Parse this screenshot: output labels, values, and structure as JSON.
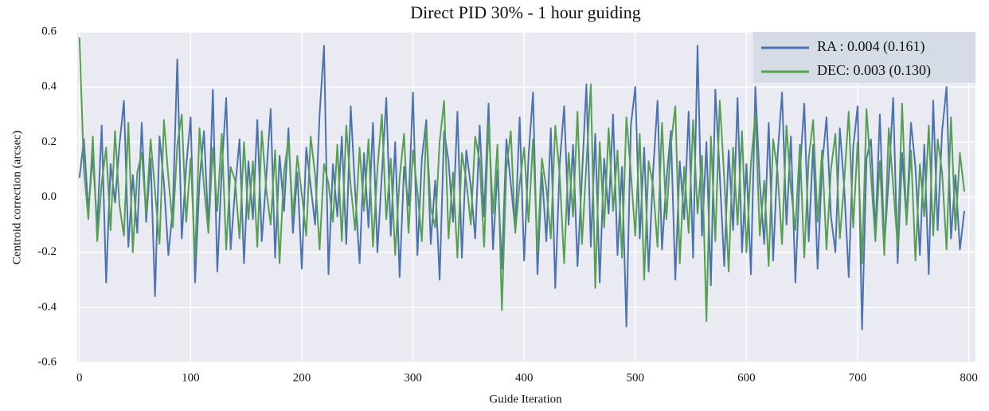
{
  "chart_data": {
    "type": "line",
    "title": "Direct PID 30% - 1 hour guiding",
    "xlabel": "Guide Iteration",
    "ylabel": "Centroid correction  (arcsec)",
    "xlim": [
      -2,
      806
    ],
    "ylim": [
      -0.6,
      0.6
    ],
    "xticks": [
      0,
      100,
      200,
      300,
      400,
      500,
      600,
      700,
      800
    ],
    "yticks": [
      -0.6,
      -0.4,
      -0.2,
      {
        "value": 0,
        "label": "0.0"
      },
      0.2,
      0.4,
      0.6
    ],
    "grid": true,
    "legend": "upper right",
    "x": [
      0,
      4,
      8,
      12,
      16,
      20,
      24,
      28,
      32,
      36,
      40,
      44,
      48,
      52,
      56,
      60,
      64,
      68,
      72,
      76,
      80,
      84,
      88,
      92,
      96,
      100,
      104,
      108,
      112,
      116,
      120,
      124,
      128,
      132,
      136,
      140,
      144,
      148,
      152,
      156,
      160,
      164,
      168,
      172,
      176,
      180,
      184,
      188,
      192,
      196,
      200,
      204,
      208,
      212,
      216,
      220,
      224,
      228,
      232,
      236,
      240,
      244,
      248,
      252,
      256,
      260,
      264,
      268,
      272,
      276,
      280,
      284,
      288,
      292,
      296,
      300,
      304,
      308,
      312,
      316,
      320,
      324,
      328,
      332,
      336,
      340,
      344,
      348,
      352,
      356,
      360,
      364,
      368,
      372,
      376,
      380,
      384,
      388,
      392,
      396,
      400,
      404,
      408,
      412,
      416,
      420,
      424,
      428,
      432,
      436,
      440,
      444,
      448,
      452,
      456,
      460,
      464,
      468,
      472,
      476,
      480,
      484,
      488,
      492,
      496,
      500,
      504,
      508,
      512,
      516,
      520,
      524,
      528,
      532,
      536,
      540,
      544,
      548,
      552,
      556,
      560,
      564,
      568,
      572,
      576,
      580,
      584,
      588,
      592,
      596,
      600,
      604,
      608,
      612,
      616,
      620,
      624,
      628,
      632,
      636,
      640,
      644,
      648,
      652,
      656,
      660,
      664,
      668,
      672,
      676,
      680,
      684,
      688,
      692,
      696,
      700,
      704,
      708,
      712,
      716,
      720,
      724,
      728,
      732,
      736,
      740,
      744,
      748,
      752,
      756,
      760,
      764,
      768,
      772,
      776,
      780,
      784,
      788,
      792,
      796
    ],
    "series": [
      {
        "name": "RA :  0.004 (0.161)",
        "color": "#4c72b0",
        "values": [
          0.07,
          0.21,
          -0.05,
          0.15,
          -0.11,
          0.26,
          -0.31,
          0.12,
          -0.02,
          0.19,
          0.35,
          -0.18,
          0.08,
          -0.13,
          0.27,
          -0.09,
          0.14,
          -0.36,
          0.22,
          0.05,
          -0.21,
          -0.04,
          0.5,
          -0.15,
          0.11,
          0.29,
          -0.31,
          0.06,
          0.24,
          -0.12,
          0.39,
          -0.27,
          0.1,
          0.36,
          -0.19,
          0.03,
          0.21,
          -0.24,
          0.13,
          -0.08,
          0.28,
          -0.16,
          0.07,
          0.32,
          -0.22,
          0.15,
          -0.05,
          0.25,
          -0.13,
          0.09,
          -0.26,
          0.18,
          0.04,
          -0.1,
          0.3,
          0.55,
          -0.28,
          0.12,
          -0.07,
          0.22,
          -0.17,
          0.33,
          0.02,
          -0.24,
          0.16,
          -0.11,
          0.27,
          -0.2,
          0.08,
          0.36,
          -0.14,
          0.2,
          -0.29,
          0.11,
          -0.03,
          0.38,
          -0.21,
          0.14,
          0.28,
          -0.17,
          0.06,
          -0.3,
          0.24,
          0.13,
          -0.09,
          0.31,
          -0.22,
          0.17,
          0.04,
          -0.15,
          0.26,
          -0.07,
          0.34,
          -0.19,
          0.1,
          -0.26,
          0.21,
          0.05,
          -0.12,
          0.29,
          -0.23,
          0.15,
          0.38,
          -0.28,
          0.09,
          -0.16,
          0.25,
          -0.33,
          0.12,
          0.33,
          -0.1,
          0.19,
          -0.25,
          0.07,
          0.41,
          -0.18,
          0.23,
          -0.31,
          0.14,
          -0.06,
          0.3,
          -0.21,
          0.11,
          -0.47,
          0.26,
          0.4,
          -0.15,
          0.18,
          -0.27,
          0.09,
          0.35,
          -0.19,
          0.06,
          0.24,
          -0.3,
          0.13,
          -0.08,
          0.31,
          -0.22,
          0.55,
          -0.14,
          0.2,
          -0.32,
          0.39,
          0.08,
          -0.25,
          0.17,
          -0.12,
          0.36,
          -0.2,
          0.12,
          -0.28,
          0.4,
          0.05,
          -0.17,
          0.27,
          -0.23,
          0.15,
          0.38,
          -0.1,
          0.22,
          -0.31,
          0.09,
          0.34,
          -0.16,
          0.19,
          -0.26,
          0.11,
          0.29,
          -0.07,
          -0.2,
          0.25,
          0.03,
          -0.29,
          0.18,
          0.33,
          -0.48,
          0.14,
          0.21,
          -0.13,
          0.3,
          -0.18,
          0.07,
          0.36,
          -0.24,
          0.16,
          -0.09,
          0.27,
          0.11,
          -0.21,
          0.19,
          -0.28,
          0.35,
          -0.12,
          0.24,
          0.4,
          -0.15,
          0.08,
          -0.19,
          -0.05
        ]
      },
      {
        "name": "DEC: 0.003 (0.130)",
        "color": "#55a04f",
        "values": [
          0.58,
          0.1,
          -0.08,
          0.22,
          -0.16,
          0.05,
          0.18,
          -0.12,
          0.24,
          -0.03,
          -0.14,
          0.27,
          -0.2,
          0.09,
          0.16,
          -0.06,
          0.21,
          0.02,
          -0.17,
          0.28,
          0.07,
          -0.11,
          0.19,
          0.3,
          -0.09,
          0.14,
          -0.22,
          0.25,
          0.04,
          -0.13,
          0.18,
          -0.05,
          0.23,
          -0.19,
          0.11,
          0.06,
          -0.15,
          0.2,
          -0.08,
          0.13,
          -0.18,
          0.24,
          0.03,
          -0.1,
          0.17,
          -0.24,
          0.09,
          0.21,
          -0.07,
          0.15,
          0.01,
          -0.14,
          0.22,
          0.08,
          -0.19,
          0.12,
          0.05,
          -0.09,
          0.19,
          -0.16,
          0.26,
          0.04,
          -0.12,
          0.18,
          -0.05,
          0.21,
          -0.18,
          0.1,
          0.3,
          -0.08,
          0.14,
          -0.21,
          0.07,
          0.23,
          -0.13,
          0.17,
          0.02,
          -0.16,
          0.25,
          -0.04,
          -0.11,
          0.2,
          0.35,
          -0.15,
          0.09,
          -0.22,
          0.16,
          0.06,
          -0.1,
          0.22,
          0.13,
          -0.18,
          0.27,
          -0.06,
          0.19,
          -0.41,
          0.1,
          0.24,
          -0.13,
          0.05,
          0.18,
          -0.09,
          0.21,
          -0.2,
          0.14,
          0.03,
          -0.15,
          0.26,
          0.08,
          -0.24,
          0.16,
          -0.07,
          0.31,
          -0.17,
          0.12,
          0.41,
          -0.33,
          0.2,
          -0.11,
          0.25,
          -0.05,
          0.17,
          -0.22,
          0.29,
          0.09,
          -0.14,
          0.23,
          -0.3,
          0.13,
          0.04,
          -0.18,
          0.27,
          -0.08,
          0.19,
          0.33,
          -0.24,
          0.11,
          -0.13,
          0.28,
          -0.06,
          0.15,
          -0.45,
          0.22,
          -0.16,
          0.35,
          0.07,
          -0.27,
          0.18,
          -0.1,
          0.24,
          -0.2,
          0.12,
          0.3,
          -0.14,
          0.06,
          -0.25,
          0.21,
          0.09,
          -0.17,
          0.26,
          0.03,
          -0.12,
          0.19,
          -0.22,
          0.14,
          0.28,
          -0.09,
          0.17,
          -0.19,
          0.1,
          0.23,
          -0.15,
          0.06,
          0.31,
          -0.11,
          0.2,
          -0.24,
          0.32,
          0.08,
          -0.16,
          0.13,
          -0.21,
          0.25,
          0.04,
          -0.18,
          0.34,
          -0.1,
          0.17,
          -0.23,
          0.12,
          -0.07,
          0.26,
          -0.14,
          0.21,
          0.09,
          -0.19,
          0.29,
          -0.12,
          0.16,
          0.02
        ]
      }
    ]
  }
}
